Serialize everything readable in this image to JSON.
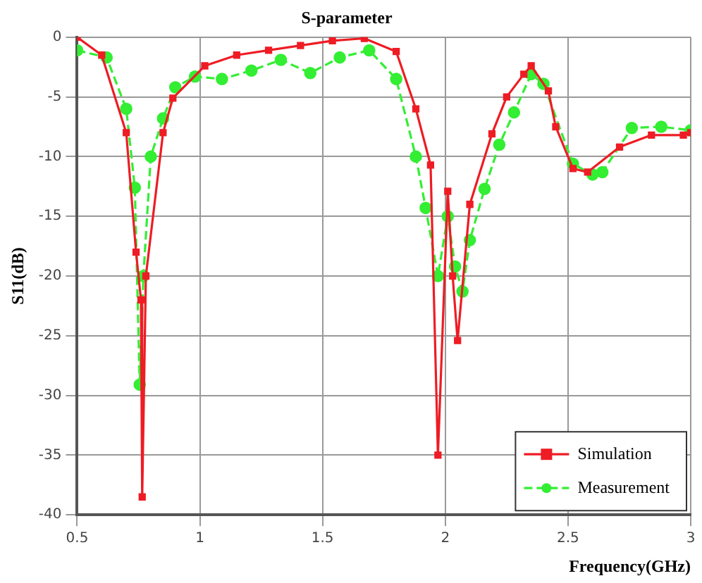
{
  "chart_data": {
    "type": "line",
    "title": "S-parameter",
    "xlabel": "Frequency(GHz)",
    "ylabel": "S11(dB)",
    "xlim": [
      0.5,
      3
    ],
    "xticks": [
      0.5,
      1,
      1.5,
      2,
      2.5,
      3
    ],
    "ylim": [
      -40,
      0
    ],
    "yticks": [
      -40,
      -35,
      -30,
      -25,
      -20,
      -15,
      -10,
      -5,
      0
    ],
    "grid": true,
    "legend": "bottom right",
    "series": [
      {
        "name": "Simulation",
        "color": "#ee1c24",
        "marker": "square",
        "line_style": "solid",
        "x": [
          0.5,
          0.6,
          0.7,
          0.74,
          0.76,
          0.765,
          0.78,
          0.85,
          0.89,
          1.02,
          1.15,
          1.28,
          1.41,
          1.54,
          1.67,
          1.8,
          1.88,
          1.94,
          1.97,
          2.01,
          2.03,
          2.05,
          2.1,
          2.19,
          2.25,
          2.32,
          2.35,
          2.42,
          2.45,
          2.52,
          2.58,
          2.71,
          2.84,
          2.97,
          3.0
        ],
        "values": [
          0,
          -1.5,
          -8,
          -18,
          -22,
          -38.5,
          -20,
          -8,
          -5.1,
          -2.4,
          -1.5,
          -1.1,
          -0.7,
          -0.3,
          -0.1,
          -1.2,
          -6,
          -10.7,
          -35,
          -12.9,
          -20,
          -25.4,
          -14,
          -8.1,
          -5,
          -3.1,
          -2.4,
          -4.5,
          -7.5,
          -11,
          -11.3,
          -9.2,
          -8.2,
          -8.2,
          -8
        ]
      },
      {
        "name": "Measurement",
        "color": "#33ee33",
        "marker": "circle",
        "line_style": "dashed",
        "x": [
          0.5,
          0.62,
          0.7,
          0.735,
          0.755,
          0.77,
          0.8,
          0.85,
          0.9,
          0.98,
          1.09,
          1.21,
          1.33,
          1.45,
          1.57,
          1.69,
          1.8,
          1.88,
          1.92,
          1.97,
          2.01,
          2.04,
          2.07,
          2.1,
          2.16,
          2.22,
          2.28,
          2.35,
          2.4,
          2.52,
          2.6,
          2.64,
          2.76,
          2.88,
          3.0
        ],
        "values": [
          -1.1,
          -1.7,
          -6,
          -12.6,
          -29.1,
          -20,
          -10,
          -6.8,
          -4.2,
          -3.3,
          -3.5,
          -2.8,
          -1.9,
          -3,
          -1.7,
          -1.1,
          -3.5,
          -10,
          -14.3,
          -20,
          -15,
          -19.2,
          -21.3,
          -17,
          -12.7,
          -9,
          -6.3,
          -3.1,
          -3.9,
          -10.6,
          -11.5,
          -11.3,
          -7.6,
          -7.5,
          -7.8
        ]
      }
    ]
  }
}
